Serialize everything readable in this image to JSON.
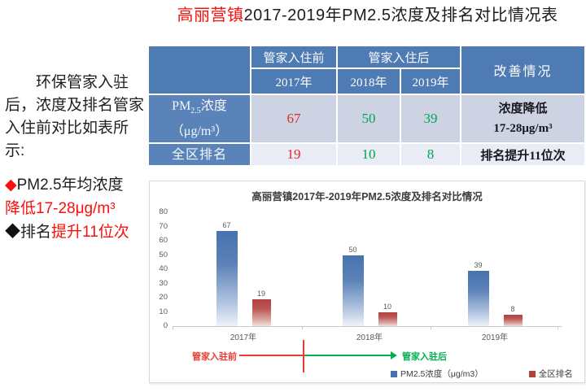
{
  "colors": {
    "accent_red": "#fa0f0a",
    "table_header_blue": "#4e7bb4",
    "table_rowheader_blue": "#5a83ba",
    "table_row1_bg": "#cdd3e2",
    "table_row2_bg": "#e9ecf4",
    "value_red": "#e02b24",
    "value_green": "#00a551",
    "bar_blue": "#4673ae",
    "bar_red": "#b2423f",
    "annotation_red": "#e73c30",
    "annotation_green": "#00b050"
  },
  "page": {
    "title_highlight": "高丽营镇",
    "title_rest": "2017-2019年PM2.5浓度及排名对比情况表"
  },
  "sidebar": {
    "paragraph": "环保管家入驻后，浓度及排名管家入住前对比如表所示:",
    "bullet1_marker": "◆",
    "bullet1_text": "PM2.5年均浓度",
    "bullet1_red_text": "降低17-28μg/m³",
    "bullet2_marker": "◆",
    "bullet2_text": "排名",
    "bullet2_red_text": "提升11位次"
  },
  "table": {
    "header": {
      "before": "管家入住前",
      "after": "管家入住后",
      "improvement": "改善情况",
      "year_before": "2017年",
      "year_after1": "2018年",
      "year_after2": "2019年"
    },
    "row_pm": {
      "label_p1": "PM",
      "label_sub": "2.5",
      "label_p2": "浓度",
      "label_line2": "（μg/m³）",
      "v2017": "67",
      "v2018": "50",
      "v2019": "39",
      "improvement_line1": "浓度降低",
      "improvement_line2": "17-28μg/m³"
    },
    "row_rank": {
      "label": "全区排名",
      "v2017": "19",
      "v2018": "10",
      "v2019": "8",
      "improvement": "排名提升11位次"
    }
  },
  "chart_data": {
    "type": "bar",
    "title": "高丽营镇2017年-2019年PM2.5浓度及排名对比情况",
    "categories": [
      "2017年",
      "2018年",
      "2019年"
    ],
    "series": [
      {
        "name": "PM2.5浓度（μg/m3）",
        "values": [
          67,
          50,
          39
        ],
        "color": "#4673ae"
      },
      {
        "name": "全区排名",
        "values": [
          19,
          10,
          8
        ],
        "color": "#b2423f"
      }
    ],
    "ylim": [
      0,
      80
    ],
    "ytick_step": 10,
    "grid": false,
    "legend_position": "bottom-right",
    "annotation_before": "管家入驻前",
    "annotation_after": "管家入驻后"
  }
}
